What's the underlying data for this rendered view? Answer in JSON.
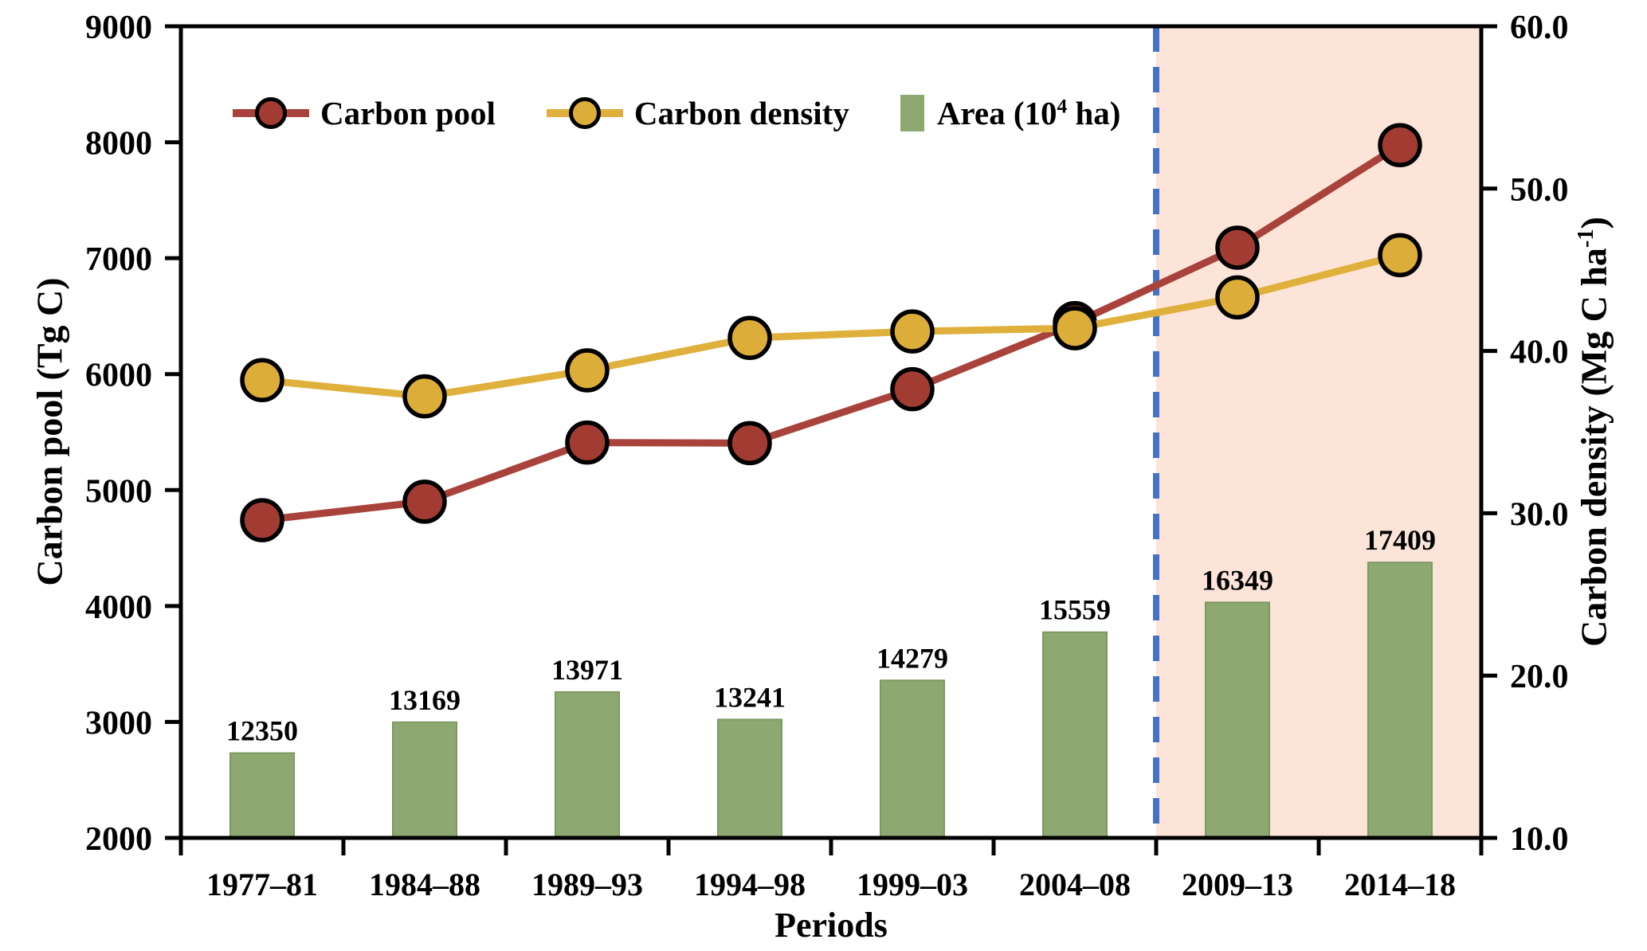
{
  "figure": {
    "xlabel": "Periods",
    "ylabel_left": "Carbon pool (Tg C)",
    "ylabel_right_pre": "Carbon density (Mg C ha",
    "ylabel_right_sup": "-1",
    "ylabel_right_post": ")",
    "legend": {
      "carbon_pool": "Carbon pool",
      "carbon_density": "Carbon density",
      "area_pre": "Area (10",
      "area_sup": "4",
      "area_post": " ha)"
    }
  },
  "chart_data": {
    "type": "combo-bar-line-dual-axis",
    "categories": [
      "1977–81",
      "1984–88",
      "1989–93",
      "1994–98",
      "1999–03",
      "2004–08",
      "2009–13",
      "2014–18"
    ],
    "xlabel": "Periods",
    "series": [
      {
        "name": "Carbon pool",
        "type": "line",
        "axis": "left",
        "unit": "Tg C",
        "line_color": "#A8423B",
        "marker_fill": "#A23C33",
        "marker_outline": "#000000",
        "values": [
          4740,
          4900,
          5410,
          5405,
          5870,
          6440,
          7090,
          7975
        ]
      },
      {
        "name": "Carbon density",
        "type": "line",
        "axis": "right",
        "unit": "Mg C ha-1",
        "line_color": "#DFB03C",
        "marker_fill": "#DCAD38",
        "marker_outline": "#000000",
        "values": [
          38.2,
          37.2,
          38.8,
          40.8,
          41.2,
          41.4,
          43.3,
          45.9
        ]
      },
      {
        "name": "Area (10^4 ha)",
        "type": "bar",
        "axis": "hidden",
        "unit": "10^4 ha",
        "bar_color": "#8EA872",
        "bar_edge": "#7C9861",
        "values": [
          12350,
          13169,
          13971,
          13241,
          14279,
          15559,
          16349,
          17409
        ],
        "data_labels": [
          "12350",
          "13169",
          "13971",
          "13241",
          "14279",
          "15559",
          "16349",
          "17409"
        ]
      }
    ],
    "y_left": {
      "label": "Carbon pool (Tg C)",
      "min": 2000,
      "max": 9000,
      "step": 1000,
      "tick_labels": [
        "9000",
        "8000",
        "7000",
        "6000",
        "5000",
        "4000",
        "3000",
        "2000"
      ]
    },
    "y_right": {
      "label": "Carbon density (Mg C ha-1)",
      "min": 10,
      "max": 60,
      "step": 10,
      "tick_labels": [
        "60.0",
        "50.0",
        "40.0",
        "30.0",
        "20.0",
        "10.0"
      ]
    },
    "hidden_bar_axis": {
      "min": 10100,
      "max": 31640
    },
    "highlight": {
      "from_category_index": 6,
      "fill_color": "#FCE5D8",
      "divider_color": "#4472C4",
      "divider_style": "dashed"
    },
    "grid": false,
    "legend_position": "top-inside",
    "axis_color": "#000000",
    "background": "#FFFFFF"
  }
}
